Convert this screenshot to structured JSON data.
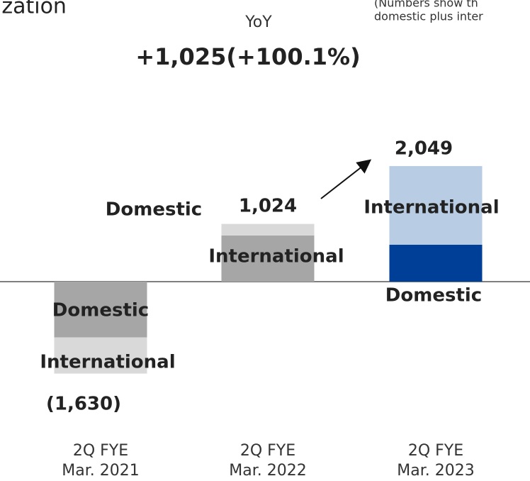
{
  "title": "ization",
  "note": [
    "(Numbers show th",
    "domestic plus inter"
  ],
  "chart_data": {
    "type": "bar",
    "stacked": true,
    "subtitle": "YoY",
    "annotation": "+1,025(+100.1%)",
    "categories": [
      [
        "2Q FYE",
        "Mar. 2021"
      ],
      [
        "2Q FYE",
        "Mar. 2022"
      ],
      [
        "2Q FYE",
        "Mar. 2023"
      ]
    ],
    "series": [
      {
        "name": "Domestic",
        "color": [
          "#a6a6a6",
          "#d9d9d9",
          "#003f98"
        ],
        "values": [
          -990,
          204,
          654
        ]
      },
      {
        "name": "International",
        "color": [
          "#d9d9d9",
          "#a6a6a6",
          "#b8cce4"
        ],
        "values": [
          -640,
          820,
          1395
        ]
      }
    ],
    "totals": [
      -1630,
      1024,
      2049
    ],
    "total_labels": [
      "(1,630)",
      "1,024",
      "2,049"
    ]
  }
}
